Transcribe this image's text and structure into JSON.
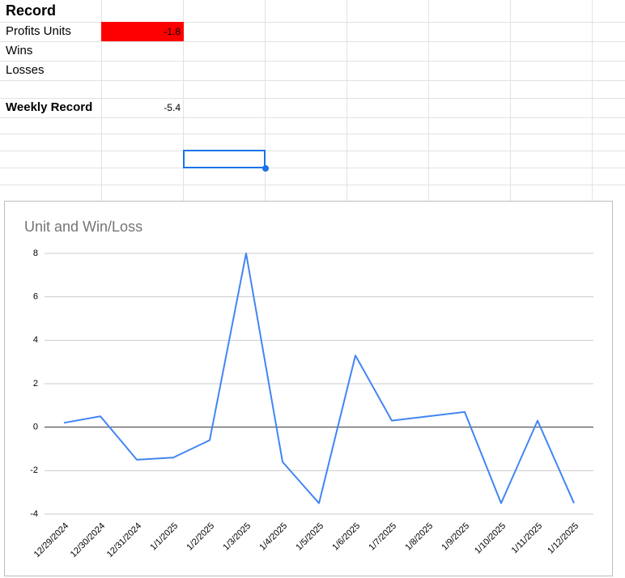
{
  "sheet": {
    "title": "Record",
    "rows": [
      {
        "label": "Profits Units",
        "value": -1.8
      },
      {
        "label": "Wins"
      },
      {
        "label": "Losses"
      },
      {
        "label": "Weekly Record",
        "value": -5.4
      }
    ]
  },
  "chart_data": {
    "type": "line",
    "title": "Unit and Win/Loss",
    "categories": [
      "12/29/2024",
      "12/30/2024",
      "12/31/2024",
      "1/1/2025",
      "1/2/2025",
      "1/3/2025",
      "1/4/2025",
      "1/5/2025",
      "1/6/2025",
      "1/7/2025",
      "1/8/2025",
      "1/9/2025",
      "1/10/2025",
      "1/11/2025",
      "1/12/2025"
    ],
    "values": [
      0.2,
      0.5,
      -1.5,
      -1.4,
      -0.6,
      8,
      -1.6,
      -3.5,
      3.3,
      0.3,
      0.5,
      0.7,
      -3.5,
      0.3,
      -3.5
    ],
    "color": "#4285f4",
    "ylim": [
      -4,
      8
    ],
    "yticks": [
      -4,
      -2,
      0,
      2,
      4,
      6,
      8
    ],
    "grid": true
  }
}
